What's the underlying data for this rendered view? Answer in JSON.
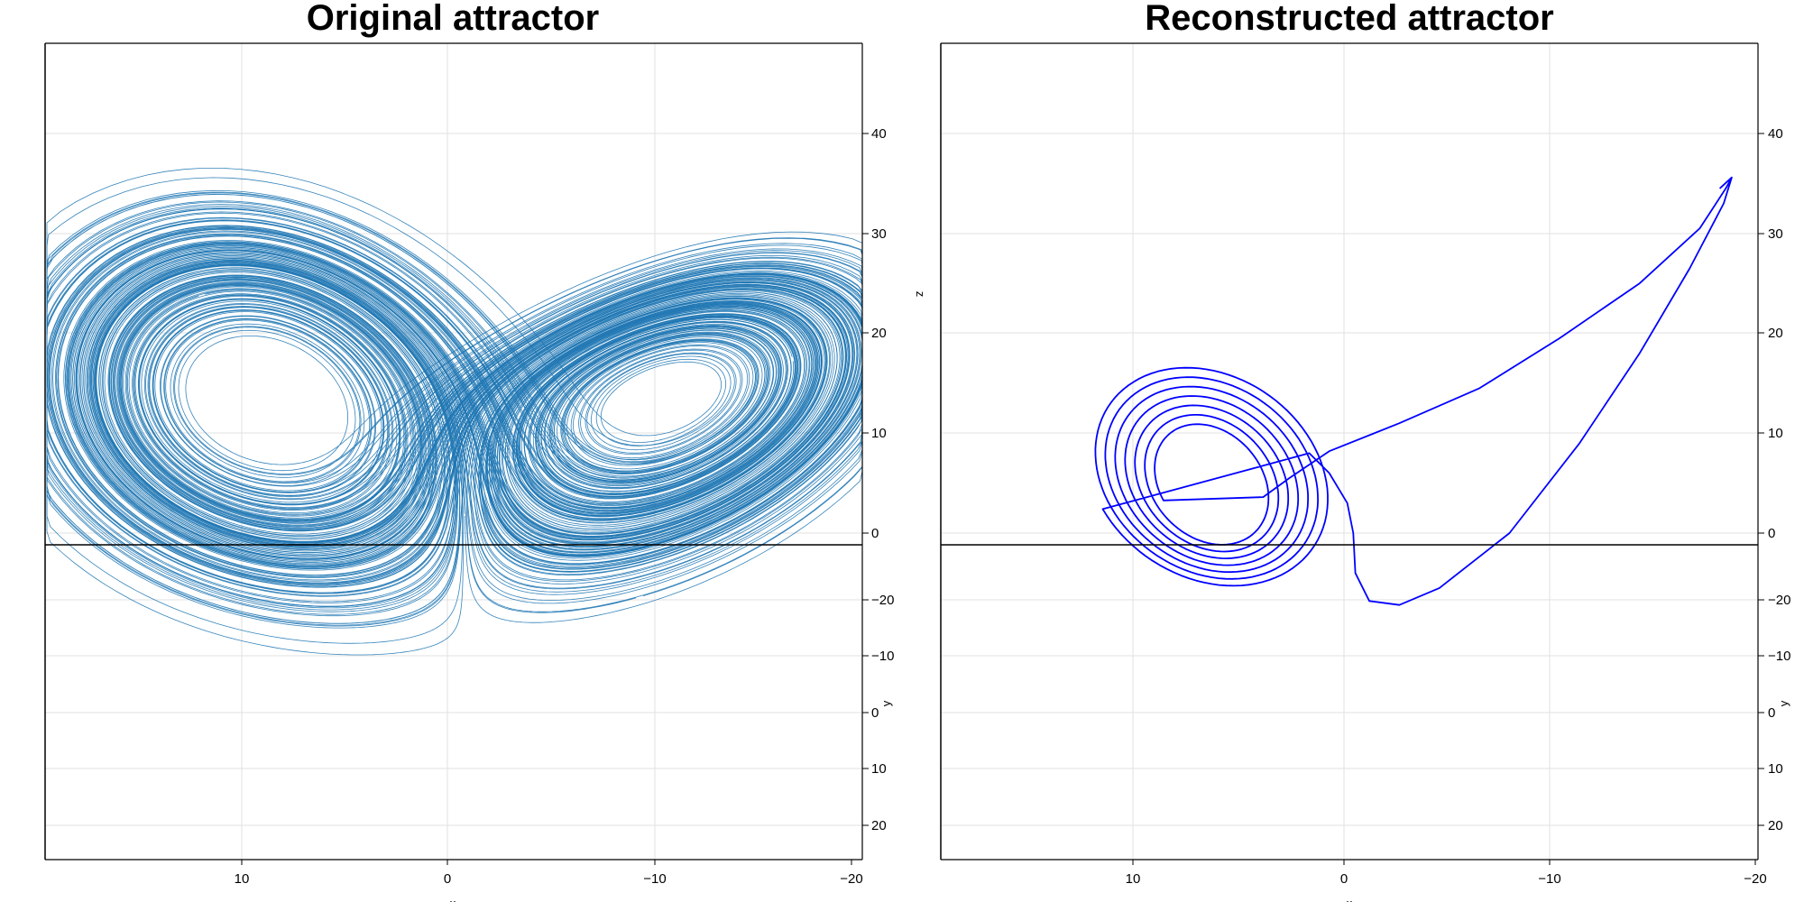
{
  "figure": {
    "background": "#ffffff",
    "grid_color": "#e2e2e2"
  },
  "chart_data": [
    {
      "type": "line",
      "projection": "3d-perspective",
      "title": "Original attractor",
      "series_color": "#1f77b4",
      "series_style": "dense chaotic trajectory, two-lobed Lorenz attractor, thin strokes",
      "xlabel": "x",
      "ylabel": "y",
      "zlabel": "z",
      "x_ticks": [
        "10",
        "0",
        "−10",
        "−20"
      ],
      "z_ticks": [
        "40",
        "30",
        "20",
        "10",
        "0"
      ],
      "y_ticks": [
        "−20",
        "−10",
        "0",
        "10",
        "20"
      ],
      "xlim": [
        20,
        -20
      ],
      "ylim": [
        -25,
        25
      ],
      "zlim": [
        0,
        45
      ],
      "grid": true,
      "legend": "none",
      "features": {
        "left_lobe_center": {
          "x": 8,
          "z": 8
        },
        "right_lobe_center": {
          "x": -8.5,
          "z": 16
        },
        "peak": {
          "x": -20,
          "z": 40
        },
        "bottom": {
          "x": 7,
          "z": -20
        }
      }
    },
    {
      "type": "line",
      "projection": "3d-perspective",
      "title": "Reconstructed attractor",
      "series_color": "#0000ff",
      "series_style": "single trajectory spiralling inward around one fixed point after a transient",
      "xlabel": "x",
      "ylabel": "y",
      "zlabel": "z",
      "x_ticks": [
        "10",
        "0",
        "−10",
        "−20"
      ],
      "z_ticks": [
        "40",
        "30",
        "20",
        "10",
        "0"
      ],
      "y_ticks": [
        "−20",
        "−10",
        "0",
        "10",
        "20"
      ],
      "xlim": [
        20,
        -20
      ],
      "ylim": [
        -25,
        25
      ],
      "zlim": [
        0,
        45
      ],
      "grid": true,
      "legend": "none",
      "features": {
        "spiral_center": {
          "x": 7.5,
          "z": 5
        },
        "outer_loop_top": {
          "x": 10.5,
          "z": 20
        },
        "transient_min": {
          "x": -1.5,
          "z": -7
        },
        "peak": {
          "x": -18.5,
          "z": 35.5
        }
      }
    }
  ]
}
